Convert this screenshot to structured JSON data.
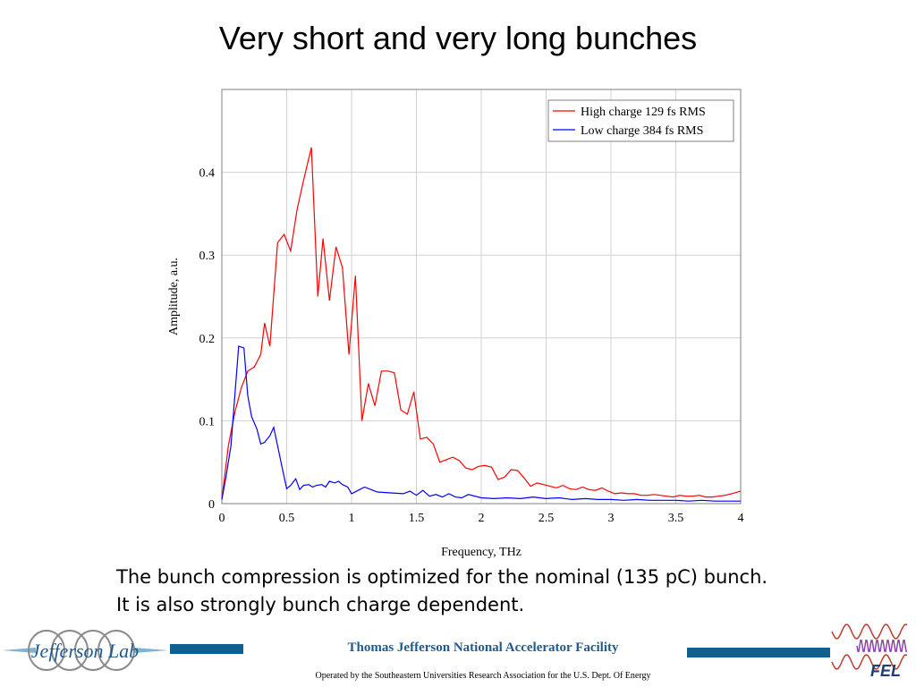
{
  "slide": {
    "title": "Very short and very long bunches",
    "caption_lines": [
      "The bunch compression is optimized for the nominal (135 pC) bunch.",
      "It is also strongly bunch charge dependent."
    ]
  },
  "footer": {
    "organization": "Thomas Jefferson National Accelerator Facility",
    "operated_by": "Operated by the Southeastern Universities Research Association for the U.S. Dept. Of Energy",
    "left_logo_text": "Jefferson Lab",
    "right_logo_text": "FEL",
    "colors": {
      "bar": "#0f5f90",
      "org_text": "#1f5b8d",
      "logo_wave": "#c0392b",
      "logo_wave_alt": "#8e44ad"
    }
  },
  "chart_data": {
    "type": "line",
    "title": "",
    "xlabel": "Frequency, THz",
    "ylabel": "Amplitude, a.u.",
    "xlim": [
      0,
      4
    ],
    "ylim": [
      0,
      0.5
    ],
    "xticks": [
      0,
      0.5,
      1,
      1.5,
      2,
      2.5,
      3,
      3.5,
      4
    ],
    "xtick_labels": [
      "0",
      "0.5",
      "1",
      "1.5",
      "2",
      "2.5",
      "3",
      "3.5",
      "4"
    ],
    "yticks": [
      0,
      0.1,
      0.2,
      0.3,
      0.4
    ],
    "ytick_labels": [
      "0",
      "0.1",
      "0.2",
      "0.3",
      "0.4"
    ],
    "grid": true,
    "legend_position": "top-right",
    "series": [
      {
        "name": "High charge 129 fs RMS",
        "color": "#ff0000",
        "x": [
          0,
          0.05,
          0.1,
          0.15,
          0.2,
          0.25,
          0.3,
          0.33,
          0.37,
          0.43,
          0.48,
          0.53,
          0.58,
          0.63,
          0.69,
          0.74,
          0.78,
          0.83,
          0.88,
          0.93,
          0.98,
          1.03,
          1.08,
          1.13,
          1.18,
          1.23,
          1.28,
          1.33,
          1.38,
          1.43,
          1.48,
          1.53,
          1.58,
          1.63,
          1.68,
          1.73,
          1.78,
          1.83,
          1.88,
          1.93,
          1.98,
          2.03,
          2.08,
          2.13,
          2.18,
          2.23,
          2.28,
          2.33,
          2.38,
          2.43,
          2.48,
          2.53,
          2.58,
          2.63,
          2.68,
          2.73,
          2.78,
          2.83,
          2.88,
          2.93,
          2.98,
          3.03,
          3.08,
          3.13,
          3.18,
          3.23,
          3.28,
          3.33,
          3.38,
          3.43,
          3.48,
          3.53,
          3.58,
          3.63,
          3.68,
          3.73,
          3.78,
          3.83,
          3.88,
          3.93,
          4.0
        ],
        "values": [
          0.005,
          0.07,
          0.11,
          0.14,
          0.16,
          0.165,
          0.18,
          0.218,
          0.19,
          0.315,
          0.325,
          0.305,
          0.355,
          0.39,
          0.43,
          0.25,
          0.32,
          0.245,
          0.31,
          0.285,
          0.18,
          0.275,
          0.1,
          0.145,
          0.118,
          0.16,
          0.16,
          0.158,
          0.113,
          0.108,
          0.135,
          0.078,
          0.08,
          0.072,
          0.05,
          0.053,
          0.056,
          0.052,
          0.043,
          0.041,
          0.045,
          0.046,
          0.044,
          0.029,
          0.032,
          0.041,
          0.04,
          0.031,
          0.021,
          0.025,
          0.023,
          0.021,
          0.019,
          0.022,
          0.018,
          0.017,
          0.02,
          0.017,
          0.016,
          0.019,
          0.015,
          0.012,
          0.013,
          0.012,
          0.012,
          0.01,
          0.01,
          0.011,
          0.01,
          0.009,
          0.008,
          0.01,
          0.009,
          0.009,
          0.01,
          0.008,
          0.008,
          0.009,
          0.01,
          0.012,
          0.015
        ]
      },
      {
        "name": "Low charge 384 fs RMS",
        "color": "#0000ff",
        "x": [
          0,
          0.03,
          0.07,
          0.1,
          0.13,
          0.17,
          0.2,
          0.23,
          0.27,
          0.3,
          0.33,
          0.37,
          0.4,
          0.43,
          0.47,
          0.5,
          0.53,
          0.57,
          0.6,
          0.63,
          0.67,
          0.7,
          0.73,
          0.77,
          0.8,
          0.83,
          0.87,
          0.9,
          0.93,
          0.97,
          1.0,
          1.05,
          1.1,
          1.15,
          1.2,
          1.3,
          1.4,
          1.45,
          1.5,
          1.55,
          1.6,
          1.65,
          1.7,
          1.75,
          1.8,
          1.85,
          1.9,
          2.0,
          2.1,
          2.2,
          2.3,
          2.4,
          2.5,
          2.6,
          2.7,
          2.8,
          2.9,
          3.0,
          3.1,
          3.2,
          3.3,
          3.4,
          3.5,
          3.6,
          3.7,
          3.8,
          3.9,
          4.0
        ],
        "values": [
          0.005,
          0.03,
          0.07,
          0.13,
          0.19,
          0.188,
          0.13,
          0.105,
          0.09,
          0.072,
          0.074,
          0.082,
          0.092,
          0.07,
          0.04,
          0.018,
          0.022,
          0.03,
          0.017,
          0.022,
          0.023,
          0.02,
          0.022,
          0.023,
          0.02,
          0.027,
          0.025,
          0.027,
          0.023,
          0.02,
          0.012,
          0.016,
          0.02,
          0.017,
          0.014,
          0.013,
          0.012,
          0.015,
          0.01,
          0.016,
          0.009,
          0.011,
          0.008,
          0.012,
          0.008,
          0.007,
          0.011,
          0.007,
          0.006,
          0.007,
          0.006,
          0.008,
          0.006,
          0.007,
          0.005,
          0.006,
          0.005,
          0.005,
          0.004,
          0.005,
          0.004,
          0.004,
          0.004,
          0.003,
          0.004,
          0.003,
          0.003,
          0.003
        ]
      }
    ]
  }
}
